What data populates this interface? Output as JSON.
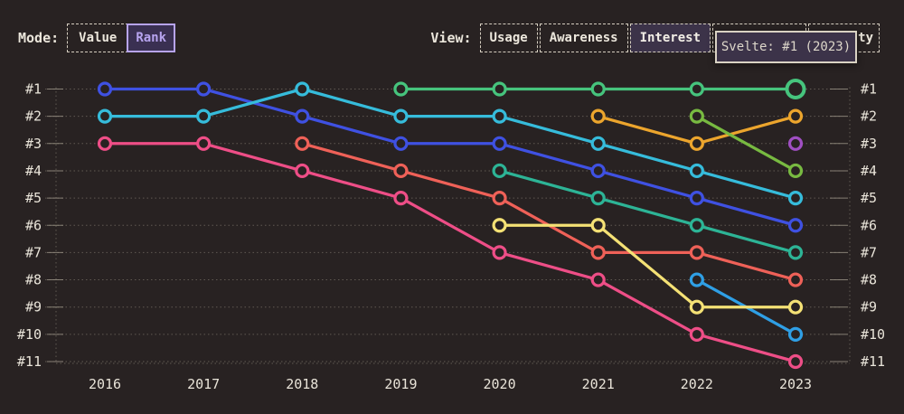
{
  "colors": {
    "background": "#282222",
    "text": "#e9e4d9",
    "grid": "#978f82",
    "accent_purple": "#b7a4ef",
    "selected_fill": "#3c3349",
    "tooltip_background": "#3c3349",
    "tooltip_border": "#d9d2c3"
  },
  "controls": {
    "mode": {
      "label": "Mode:",
      "options": [
        {
          "label": "Value",
          "selected": false
        },
        {
          "label": "Rank",
          "selected": true
        }
      ]
    },
    "view": {
      "label": "View:",
      "options": [
        {
          "label": "Usage",
          "selected": false
        },
        {
          "label": "Awareness",
          "selected": false
        },
        {
          "label": "Interest",
          "selected": true
        },
        {
          "label": "",
          "selected": false,
          "note": "button fully covered by tooltip"
        },
        {
          "label": "ty",
          "selected": false,
          "note": "button partially covered by tooltip, only trailing letters visible"
        }
      ]
    }
  },
  "tooltip": {
    "text": "Svelte: #1 (2023)"
  },
  "chart_data": {
    "type": "line",
    "subtype": "rank-bump-chart",
    "x": [
      2016,
      2017,
      2018,
      2019,
      2020,
      2021,
      2022,
      2023
    ],
    "x_labels": [
      "2016",
      "2017",
      "2018",
      "2019",
      "2020",
      "2021",
      "2022",
      "2023"
    ],
    "y_axis": {
      "type": "rank",
      "inverted": true,
      "range": [
        1,
        11
      ],
      "labels": [
        "#1",
        "#2",
        "#3",
        "#4",
        "#5",
        "#6",
        "#7",
        "#8",
        "#9",
        "#10",
        "#11"
      ]
    },
    "grid": "dotted horizontal rows, dotted vertical edge axes, labels on both sides",
    "legend": "none",
    "series": [
      {
        "name": "series-purple",
        "color": "#a04fc3",
        "values": [
          null,
          null,
          null,
          null,
          null,
          null,
          null,
          3
        ]
      },
      {
        "name": "series-skyblue",
        "color": "#2f9fe5",
        "values": [
          null,
          null,
          null,
          null,
          null,
          null,
          8,
          10
        ]
      },
      {
        "name": "series-salmon",
        "color": "#ef6158",
        "values": [
          null,
          null,
          3,
          4,
          5,
          7,
          7,
          8
        ]
      },
      {
        "name": "series-pink",
        "color": "#ee4e87",
        "values": [
          3,
          3,
          4,
          5,
          7,
          8,
          10,
          11
        ]
      },
      {
        "name": "series-yellow",
        "color": "#f4e175",
        "values": [
          null,
          null,
          null,
          null,
          6,
          6,
          9,
          9
        ]
      },
      {
        "name": "series-orange",
        "color": "#eca52d",
        "values": [
          null,
          null,
          null,
          null,
          null,
          2,
          3,
          2
        ]
      },
      {
        "name": "series-olive",
        "color": "#78ba41",
        "values": [
          null,
          null,
          null,
          null,
          null,
          null,
          2,
          4
        ]
      },
      {
        "name": "series-teal",
        "color": "#2db496",
        "values": [
          null,
          null,
          null,
          null,
          4,
          5,
          6,
          7
        ]
      },
      {
        "name": "series-blue",
        "color": "#3f51e2",
        "values": [
          1,
          1,
          2,
          3,
          3,
          4,
          5,
          6
        ]
      },
      {
        "name": "series-cyan",
        "color": "#36bcdb",
        "values": [
          2,
          2,
          1,
          2,
          2,
          3,
          4,
          5
        ]
      },
      {
        "name": "svelte",
        "color": "#46c47d",
        "values": [
          null,
          null,
          null,
          1,
          1,
          1,
          1,
          1
        ],
        "hovered_point": {
          "year": 2023,
          "rank": 1
        }
      }
    ]
  }
}
